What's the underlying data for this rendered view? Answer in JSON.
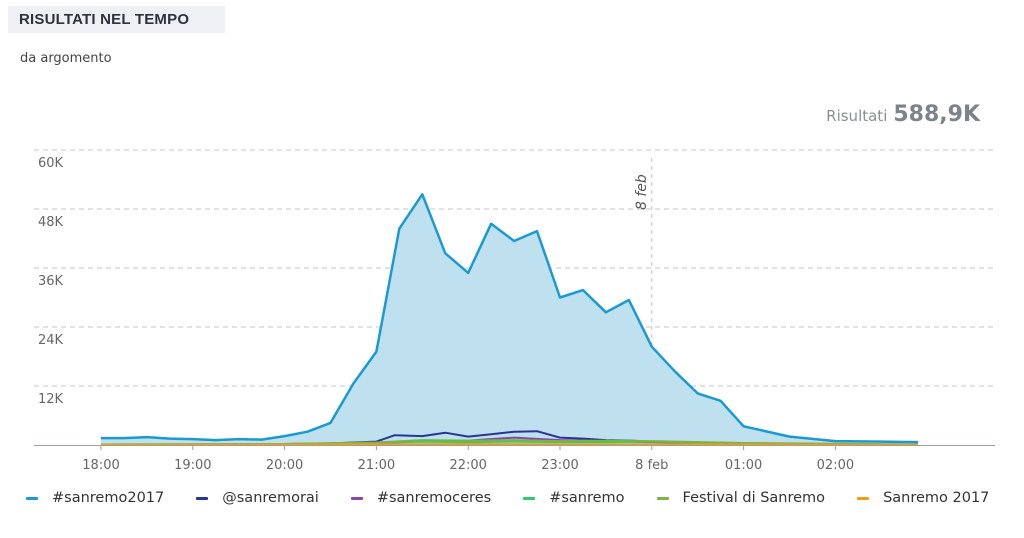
{
  "header": {
    "title": "RISULTATI NEL TEMPO",
    "subtitle": "da argomento",
    "results_label": "Risultati",
    "results_value": "588,9K"
  },
  "chart_data": {
    "type": "area",
    "y_ticks": [
      "60K",
      "48K",
      "36K",
      "24K",
      "12K"
    ],
    "y_tick_values": [
      60000,
      48000,
      36000,
      24000,
      12000
    ],
    "ylim": [
      0,
      60000
    ],
    "x_ticks": [
      "18:00",
      "19:00",
      "20:00",
      "21:00",
      "22:00",
      "23:00",
      "8 feb",
      "01:00",
      "02:00"
    ],
    "x_tick_values": [
      0,
      1,
      2,
      3,
      4,
      5,
      6,
      7,
      8
    ],
    "xlim": [
      -0.05,
      9.0
    ],
    "annotation": {
      "label": "8 feb",
      "x": 6
    },
    "grid": true,
    "legend_position": "bottom",
    "series": [
      {
        "name": "#sanremo2017",
        "color": "#1a9ad1",
        "fill": "#bfe0ef",
        "x": [
          0,
          0.25,
          0.5,
          0.75,
          1,
          1.25,
          1.5,
          1.75,
          2,
          2.25,
          2.5,
          2.75,
          3,
          3.25,
          3.5,
          3.75,
          4,
          4.25,
          4.5,
          4.75,
          5,
          5.25,
          5.5,
          5.75,
          6,
          6.25,
          6.5,
          6.75,
          7,
          7.5,
          8,
          8.5,
          8.9
        ],
        "values": [
          1400,
          1400,
          1600,
          1300,
          1200,
          1000,
          1200,
          1100,
          1800,
          2700,
          4500,
          12500,
          19000,
          44000,
          51000,
          39000,
          35000,
          45000,
          41500,
          43500,
          30000,
          31500,
          27000,
          29500,
          20000,
          15000,
          10500,
          9000,
          3800,
          1700,
          800,
          700,
          600
        ]
      },
      {
        "name": "@sanremorai",
        "color": "#283593",
        "x": [
          0,
          1,
          2,
          2.5,
          2.75,
          3,
          3.2,
          3.5,
          3.75,
          4,
          4.25,
          4.5,
          4.75,
          5,
          5.25,
          5.5,
          5.75,
          6,
          7,
          8,
          8.9
        ],
        "values": [
          100,
          100,
          200,
          300,
          500,
          700,
          2000,
          1800,
          2500,
          1700,
          2200,
          2700,
          2800,
          1500,
          1300,
          1000,
          900,
          700,
          300,
          100,
          100
        ]
      },
      {
        "name": "#sanremoceres",
        "color": "#8e44ad",
        "x": [
          0,
          2,
          3,
          3.5,
          4,
          4.5,
          5,
          5.5,
          6,
          7,
          8.9
        ],
        "values": [
          50,
          100,
          300,
          800,
          900,
          1500,
          1000,
          800,
          600,
          200,
          50
        ]
      },
      {
        "name": "#sanremo",
        "color": "#2ecc71",
        "x": [
          0,
          2,
          3,
          3.5,
          4,
          4.5,
          5,
          5.5,
          6,
          7,
          8.9
        ],
        "values": [
          100,
          200,
          500,
          700,
          600,
          700,
          600,
          600,
          700,
          300,
          100
        ]
      },
      {
        "name": "Festival di Sanremo",
        "color": "#7cb342",
        "x": [
          0,
          2,
          3,
          3.5,
          4,
          4.5,
          5,
          5.5,
          6,
          7,
          8.9
        ],
        "values": [
          100,
          200,
          500,
          1000,
          900,
          1000,
          800,
          900,
          800,
          400,
          100
        ]
      },
      {
        "name": "Sanremo 2017",
        "color": "#f39c12",
        "x": [
          0,
          2,
          3,
          4,
          5,
          6,
          7,
          8.9
        ],
        "values": [
          50,
          100,
          150,
          200,
          150,
          150,
          100,
          50
        ]
      }
    ]
  }
}
